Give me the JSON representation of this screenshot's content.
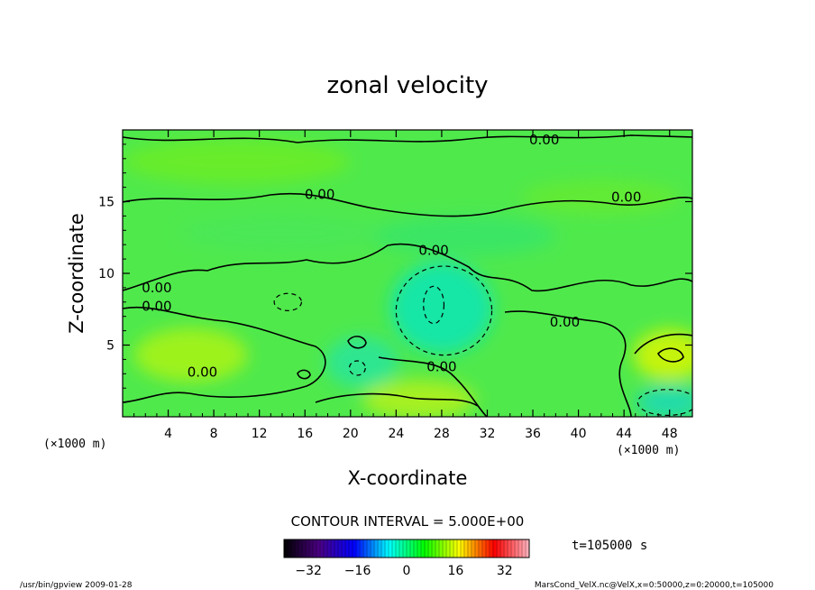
{
  "chart_data": {
    "type": "heatmap",
    "title": "zonal velocity",
    "xlabel": "X-coordinate",
    "ylabel": "Z-coordinate",
    "x_unit_label": "(×1000 m)",
    "y_unit_label": "(×1000 m)",
    "xlim": [
      0,
      50
    ],
    "ylim": [
      0,
      20
    ],
    "x_ticks": [
      4,
      8,
      12,
      16,
      20,
      24,
      28,
      32,
      36,
      40,
      44,
      48
    ],
    "y_ticks": [
      5,
      10,
      15
    ],
    "contour_interval_text": "CONTOUR INTERVAL = 5.000E+00",
    "time_text": "t=105000 s",
    "colorbar": {
      "range": [
        -40,
        40
      ],
      "ticks": [
        -32,
        -16,
        0,
        16,
        32
      ],
      "colormap": [
        "#000000",
        "#4b0082",
        "#0000ff",
        "#00ffff",
        "#00ff00",
        "#ffff00",
        "#ff0000",
        "#ffb6c1"
      ]
    },
    "contour_labels": [
      {
        "text": "0.00",
        "x": 37.0,
        "y": 19.3
      },
      {
        "text": "0.00",
        "x": 44.2,
        "y": 15.3
      },
      {
        "text": "0.00",
        "x": 17.3,
        "y": 15.5
      },
      {
        "text": "0.00",
        "x": 27.3,
        "y": 11.6
      },
      {
        "text": "0.00",
        "x": 3.0,
        "y": 9.0
      },
      {
        "text": "0.00",
        "x": 3.0,
        "y": 7.7
      },
      {
        "text": "0.00",
        "x": 38.8,
        "y": 6.6
      },
      {
        "text": "0.00",
        "x": 7.0,
        "y": 3.1
      },
      {
        "text": "0.00",
        "x": 28.0,
        "y": 3.5
      }
    ],
    "field_blobs": [
      {
        "x": 28,
        "y": 7.6,
        "rx": 4.5,
        "ry": 3.2,
        "color": "#15e6a6"
      },
      {
        "x": 21,
        "y": 3.8,
        "rx": 3.2,
        "ry": 1.8,
        "color": "#2de690"
      },
      {
        "x": 6,
        "y": 4.3,
        "rx": 5,
        "ry": 1.9,
        "color": "#9ef21c"
      },
      {
        "x": 26,
        "y": 1.2,
        "rx": 5,
        "ry": 1.4,
        "color": "#a6f020"
      },
      {
        "x": 48,
        "y": 4.3,
        "rx": 3.2,
        "ry": 1.8,
        "color": "#c4f410"
      },
      {
        "x": 48,
        "y": 1.0,
        "rx": 3,
        "ry": 1.2,
        "color": "#20dca8"
      },
      {
        "x": 14,
        "y": 12.8,
        "rx": 9,
        "ry": 1.3,
        "color": "#4ce856"
      },
      {
        "x": 30,
        "y": 12.6,
        "rx": 8,
        "ry": 1.4,
        "color": "#3be665"
      },
      {
        "x": 42,
        "y": 15.3,
        "rx": 7,
        "ry": 1.2,
        "color": "#62ea36"
      },
      {
        "x": 10,
        "y": 17.8,
        "rx": 10,
        "ry": 1.6,
        "color": "#68ec2c"
      }
    ],
    "dashed_contours": [
      {
        "x": 27.3,
        "y": 7.8,
        "rx": 0.9,
        "ry": 1.3
      },
      {
        "x": 20.6,
        "y": 3.4,
        "rx": 0.7,
        "ry": 0.5
      },
      {
        "x": 28.2,
        "y": 7.4,
        "rx": 4.2,
        "ry": 3.1
      },
      {
        "x": 47.8,
        "y": 1.0,
        "rx": 2.6,
        "ry": 0.9
      },
      {
        "x": 14.5,
        "y": 8.0,
        "rx": 1.2,
        "ry": 0.6
      }
    ]
  },
  "footer": {
    "left": "/usr/bin/gpview  2009-01-28",
    "right": "MarsCond_VelX.nc@VelX,x=0:50000,z=0:20000,t=105000"
  }
}
